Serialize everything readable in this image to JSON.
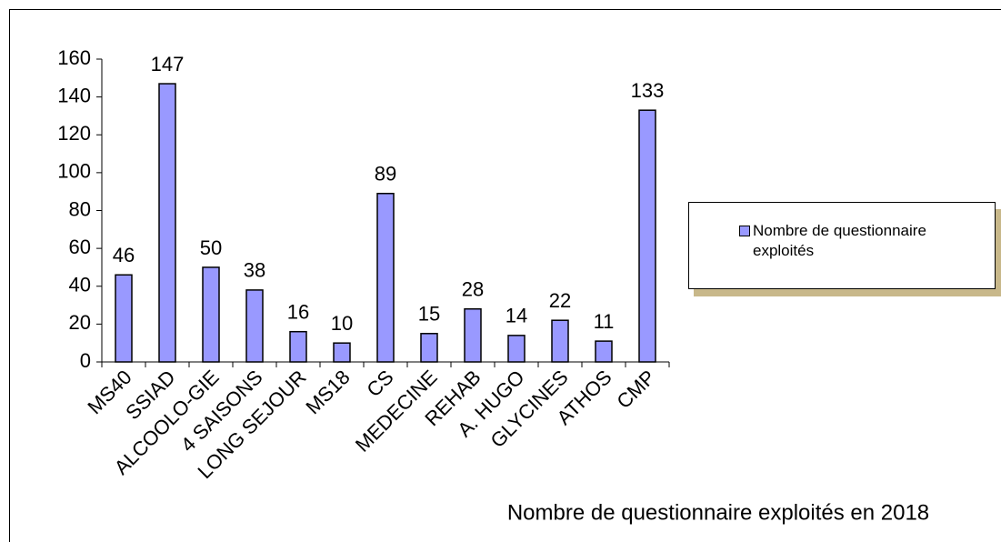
{
  "chart_data": {
    "type": "bar",
    "title": "Nombre de questionnaire exploités en 2018",
    "categories": [
      "MS40",
      "SSIAD",
      "ALCOOLO-GIE",
      "4 SAISONS",
      "LONG SEJOUR",
      "MS18",
      "CS",
      "MEDECINE",
      "REHAB",
      "A. HUGO",
      "GLYCINES",
      "ATHOS",
      "CMP"
    ],
    "series": [
      {
        "name": "Nombre de questionnaire exploités",
        "color": "#9999ff",
        "values": [
          46,
          147,
          50,
          38,
          16,
          10,
          89,
          15,
          28,
          14,
          22,
          11,
          133
        ]
      }
    ],
    "ylim": [
      0,
      160
    ],
    "yticks": [
      0,
      20,
      40,
      60,
      80,
      100,
      120,
      140,
      160
    ],
    "legend": "right"
  }
}
